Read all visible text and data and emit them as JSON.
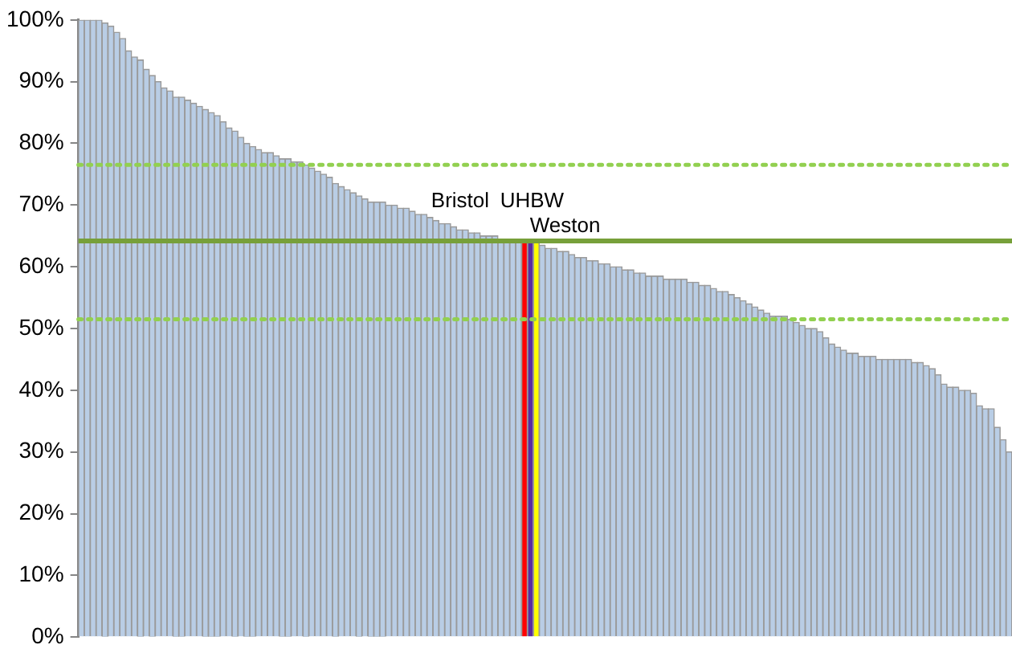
{
  "chart_data": {
    "type": "bar",
    "categories": [
      null,
      null,
      null,
      null,
      null,
      null,
      null,
      null,
      null,
      null,
      null,
      null,
      null,
      null,
      null,
      null,
      null,
      null,
      null,
      null,
      null,
      null,
      null,
      null,
      null,
      null,
      null,
      null,
      null,
      null,
      null,
      null,
      null,
      null,
      null,
      null,
      null,
      null,
      null,
      null,
      null,
      null,
      null,
      null,
      null,
      null,
      null,
      null,
      null,
      null,
      null,
      null,
      null,
      null,
      null,
      null,
      null,
      null,
      null,
      null,
      null,
      null,
      null,
      null,
      null,
      null,
      null,
      null,
      null,
      null,
      null,
      null,
      null,
      null,
      null,
      null,
      null,
      null,
      null,
      null,
      null,
      null,
      null,
      null,
      null,
      null,
      null,
      null,
      null,
      null,
      null,
      null,
      null,
      null,
      null,
      null,
      null,
      null,
      null,
      null,
      null,
      null,
      null,
      null,
      null,
      null,
      null,
      null,
      null,
      null,
      null,
      null,
      null,
      null,
      null,
      null,
      null,
      null,
      null,
      null,
      null,
      null,
      null,
      null,
      null,
      null,
      null,
      null,
      null,
      null,
      null,
      null,
      null,
      null,
      null,
      null,
      null,
      null,
      null,
      null,
      null,
      null,
      null,
      null,
      null,
      null,
      null,
      null,
      null,
      null,
      null,
      null,
      null,
      null,
      null,
      null,
      null,
      null
    ],
    "values": [
      100,
      100,
      100,
      100,
      99.5,
      99,
      98,
      97,
      95,
      94,
      93.5,
      92,
      91,
      90,
      89,
      88.5,
      87.5,
      87.5,
      87,
      86.5,
      86,
      85.5,
      85,
      84.5,
      83.5,
      82.5,
      82,
      81,
      80,
      79.5,
      79,
      78.5,
      78.5,
      78,
      77.5,
      77.5,
      77,
      77,
      76.5,
      76,
      75.5,
      75,
      74.5,
      73.5,
      73,
      72.5,
      72,
      71.5,
      71,
      70.5,
      70.5,
      70.5,
      70,
      70,
      69.5,
      69.5,
      69,
      68.5,
      68.5,
      68,
      67.5,
      67,
      67,
      66.5,
      66,
      66,
      65.5,
      65.5,
      65,
      65,
      65,
      64.5,
      64.5,
      64.5,
      64.5,
      64.5,
      64.5,
      64,
      63.5,
      63,
      63,
      62.5,
      62.5,
      62,
      61.5,
      61.5,
      61,
      61,
      60.5,
      60.5,
      60,
      60,
      59.5,
      59.5,
      59,
      59,
      58.5,
      58.5,
      58.5,
      58,
      58,
      58,
      58,
      57.5,
      57.5,
      57,
      57,
      56.5,
      56,
      56,
      55.5,
      55,
      54.5,
      54,
      53.5,
      53,
      52.5,
      52,
      52,
      52,
      51.5,
      51,
      50.5,
      50,
      50,
      49.5,
      48.5,
      47.5,
      47,
      46.5,
      46,
      46,
      45.5,
      45.5,
      45.5,
      45,
      45,
      45,
      45,
      45,
      45,
      44.5,
      44.5,
      44,
      43.5,
      42.5,
      41,
      40.5,
      40.5,
      40,
      40,
      39.5,
      37.5,
      37,
      37,
      34,
      32,
      30
    ],
    "color": "#b9cde5",
    "colors": [
      "#b9cde5",
      "#b9cde5",
      "#b9cde5",
      "#b9cde5",
      "#b9cde5",
      "#b9cde5",
      "#b9cde5",
      "#b9cde5",
      "#b9cde5",
      "#b9cde5",
      "#b9cde5",
      "#b9cde5",
      "#b9cde5",
      "#b9cde5",
      "#b9cde5",
      "#b9cde5",
      "#b9cde5",
      "#b9cde5",
      "#b9cde5",
      "#b9cde5",
      "#b9cde5",
      "#b9cde5",
      "#b9cde5",
      "#b9cde5",
      "#b9cde5",
      "#b9cde5",
      "#b9cde5",
      "#b9cde5",
      "#b9cde5",
      "#b9cde5",
      "#b9cde5",
      "#b9cde5",
      "#b9cde5",
      "#b9cde5",
      "#b9cde5",
      "#b9cde5",
      "#b9cde5",
      "#b9cde5",
      "#b9cde5",
      "#b9cde5",
      "#b9cde5",
      "#b9cde5",
      "#b9cde5",
      "#b9cde5",
      "#b9cde5",
      "#b9cde5",
      "#b9cde5",
      "#b9cde5",
      "#b9cde5",
      "#b9cde5",
      "#b9cde5",
      "#b9cde5",
      "#b9cde5",
      "#b9cde5",
      "#b9cde5",
      "#b9cde5",
      "#b9cde5",
      "#b9cde5",
      "#b9cde5",
      "#b9cde5",
      "#b9cde5",
      "#b9cde5",
      "#b9cde5",
      "#b9cde5",
      "#b9cde5",
      "#b9cde5",
      "#b9cde5",
      "#b9cde5",
      "#b9cde5",
      "#b9cde5",
      "#b9cde5",
      "#b9cde5",
      "#b9cde5",
      "#b9cde5",
      "#b9cde5",
      "#ff0000",
      "#5a2ca0",
      "#ffff00",
      "#b9cde5",
      "#b9cde5",
      "#b9cde5",
      "#b9cde5",
      "#b9cde5",
      "#b9cde5",
      "#b9cde5",
      "#b9cde5",
      "#b9cde5",
      "#b9cde5",
      "#b9cde5",
      "#b9cde5",
      "#b9cde5",
      "#b9cde5",
      "#b9cde5",
      "#b9cde5",
      "#b9cde5",
      "#b9cde5",
      "#b9cde5",
      "#b9cde5",
      "#b9cde5",
      "#b9cde5",
      "#b9cde5",
      "#b9cde5",
      "#b9cde5",
      "#b9cde5",
      "#b9cde5",
      "#b9cde5",
      "#b9cde5",
      "#b9cde5",
      "#b9cde5",
      "#b9cde5",
      "#b9cde5",
      "#b9cde5",
      "#b9cde5",
      "#b9cde5",
      "#b9cde5",
      "#b9cde5",
      "#b9cde5",
      "#b9cde5",
      "#b9cde5",
      "#b9cde5",
      "#b9cde5",
      "#b9cde5",
      "#b9cde5",
      "#b9cde5",
      "#b9cde5",
      "#b9cde5",
      "#b9cde5",
      "#b9cde5",
      "#b9cde5",
      "#b9cde5",
      "#b9cde5",
      "#b9cde5",
      "#b9cde5",
      "#b9cde5",
      "#b9cde5",
      "#b9cde5",
      "#b9cde5",
      "#b9cde5",
      "#b9cde5",
      "#b9cde5",
      "#b9cde5",
      "#b9cde5",
      "#b9cde5",
      "#b9cde5",
      "#b9cde5",
      "#b9cde5",
      "#b9cde5",
      "#b9cde5",
      "#b9cde5",
      "#b9cde5",
      "#b9cde5",
      "#b9cde5",
      "#b9cde5",
      "#b9cde5",
      "#b9cde5",
      "#b9cde5",
      "#b9cde5",
      "#b9cde5"
    ],
    "ylim": [
      0,
      100
    ],
    "yticks": [
      {
        "value": 0,
        "label": "0%"
      },
      {
        "value": 10,
        "label": "10%"
      },
      {
        "value": 20,
        "label": "20%"
      },
      {
        "value": 30,
        "label": "30%"
      },
      {
        "value": 40,
        "label": "40%"
      },
      {
        "value": 50,
        "label": "50%"
      },
      {
        "value": 60,
        "label": "60%"
      },
      {
        "value": 70,
        "label": "70%"
      },
      {
        "value": 80,
        "label": "80%"
      },
      {
        "value": 90,
        "label": "90%"
      },
      {
        "value": 100,
        "label": "100%"
      }
    ],
    "ref_lines": [
      {
        "axis": "y",
        "value": 64.2,
        "color": "#77a03a",
        "line_style": "solid"
      },
      {
        "axis": "y",
        "value": 76.5,
        "color": "#92d050",
        "line_style": "dotted"
      },
      {
        "axis": "y",
        "value": 51.5,
        "color": "#92d050",
        "line_style": "dotted"
      }
    ],
    "annotations": [
      "Bristol",
      "UHBW",
      "Weston"
    ],
    "grid": false,
    "legend": false,
    "tick_labels": "y"
  }
}
